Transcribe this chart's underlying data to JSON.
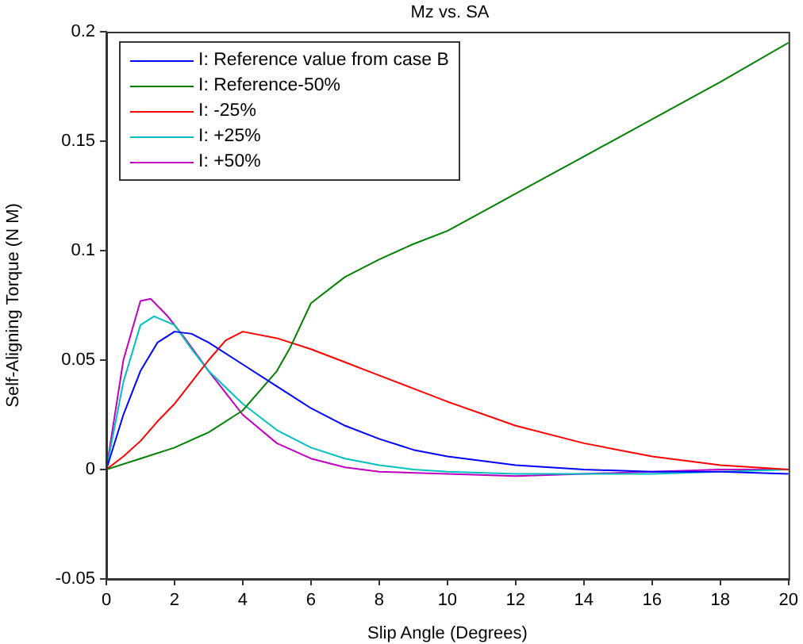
{
  "chart_data": {
    "type": "line",
    "title": "Mz vs. SA",
    "xlabel": "Slip Angle (Degrees)",
    "ylabel": "Self-Aligning Torque (N M)",
    "xlim": [
      0,
      20
    ],
    "xticks": [
      0,
      2,
      4,
      6,
      8,
      10,
      12,
      14,
      16,
      18,
      20
    ],
    "ylim": [
      -0.05,
      0.2
    ],
    "yticks": [
      -0.05,
      0,
      0.05,
      0.1,
      0.15,
      0.2
    ],
    "grid": false,
    "legend": "top left",
    "marker": "none",
    "line_style": "solid",
    "series": [
      {
        "name": "I: Reference value from case B",
        "color": "#0000ff",
        "x": [
          0,
          0.5,
          1,
          1.5,
          2,
          2.5,
          3,
          4,
          5,
          6,
          7,
          8,
          9,
          10,
          12,
          14,
          16,
          18,
          20
        ],
        "values": [
          0,
          0.025,
          0.045,
          0.058,
          0.063,
          0.062,
          0.058,
          0.048,
          0.038,
          0.028,
          0.02,
          0.014,
          0.009,
          0.006,
          0.002,
          0,
          -0.001,
          -0.001,
          -0.002
        ]
      },
      {
        "name": "I: Reference-50%",
        "color": "#008000",
        "x": [
          0,
          1,
          2,
          3,
          4,
          5,
          5.4,
          6,
          7,
          8,
          9,
          10,
          12,
          14,
          16,
          18,
          20
        ],
        "values": [
          0,
          0.005,
          0.01,
          0.017,
          0.027,
          0.045,
          0.056,
          0.076,
          0.088,
          0.096,
          0.103,
          0.109,
          0.126,
          0.143,
          0.16,
          0.177,
          0.195
        ]
      },
      {
        "name": "I: -25%",
        "color": "#ff0000",
        "x": [
          0,
          0.5,
          1,
          1.5,
          2,
          2.5,
          3,
          3.5,
          4,
          5,
          6,
          7,
          8,
          9,
          10,
          12,
          14,
          16,
          18,
          20
        ],
        "values": [
          0,
          0.006,
          0.013,
          0.022,
          0.03,
          0.04,
          0.05,
          0.059,
          0.063,
          0.06,
          0.055,
          0.049,
          0.043,
          0.037,
          0.031,
          0.02,
          0.012,
          0.006,
          0.002,
          0
        ]
      },
      {
        "name": "I: +25%",
        "color": "#00bfbf",
        "x": [
          0,
          0.5,
          1,
          1.4,
          2,
          2.5,
          3,
          4,
          5,
          6,
          7,
          8,
          9,
          10,
          12,
          14,
          16,
          18,
          20
        ],
        "values": [
          0,
          0.04,
          0.066,
          0.07,
          0.066,
          0.055,
          0.045,
          0.03,
          0.018,
          0.01,
          0.005,
          0.002,
          0,
          -0.001,
          -0.002,
          -0.002,
          -0.002,
          -0.001,
          0
        ]
      },
      {
        "name": "I: +50%",
        "color": "#bf00bf",
        "x": [
          0,
          0.5,
          1,
          1.3,
          1.8,
          2.3,
          3,
          4,
          5,
          6,
          7,
          8,
          10,
          12,
          14,
          16,
          18,
          20
        ],
        "values": [
          0,
          0.05,
          0.077,
          0.078,
          0.07,
          0.06,
          0.045,
          0.025,
          0.012,
          0.005,
          0.001,
          -0.001,
          -0.002,
          -0.003,
          -0.002,
          -0.001,
          0,
          0
        ]
      }
    ]
  }
}
